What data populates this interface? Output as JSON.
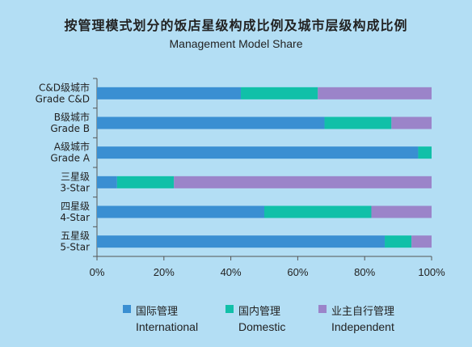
{
  "chart_data": {
    "type": "bar",
    "orientation": "horizontal",
    "stacked": true,
    "title": "按管理模式划分的饭店星级构成比例及城市层级构成比例",
    "subtitle": "Management Model Share",
    "categories": [
      {
        "zh": "C&D级城市",
        "en": "Grade C&D"
      },
      {
        "zh": "B级城市",
        "en": "Grade B"
      },
      {
        "zh": "A级城市",
        "en": "Grade A"
      },
      {
        "zh": "三星级",
        "en": "3-Star"
      },
      {
        "zh": "四星级",
        "en": "4-Star"
      },
      {
        "zh": "五星级",
        "en": "5-Star"
      }
    ],
    "series": [
      {
        "name": "国际管理",
        "name_en": "International",
        "color": "#3a8fd2",
        "values": [
          43,
          68,
          96,
          6,
          50,
          86
        ]
      },
      {
        "name": "国内管理",
        "name_en": "Domestic",
        "color": "#11c0a8",
        "values": [
          23,
          20,
          4,
          17,
          32,
          8
        ]
      },
      {
        "name": "业主自行管理",
        "name_en": "Independent",
        "color": "#9b84c9",
        "values": [
          34,
          12,
          0,
          77,
          18,
          6
        ]
      }
    ],
    "xlim": [
      0,
      100
    ],
    "xticks": [
      "0%",
      "20%",
      "40%",
      "60%",
      "80%",
      "100%"
    ],
    "grid": false,
    "legend_position": "bottom"
  }
}
